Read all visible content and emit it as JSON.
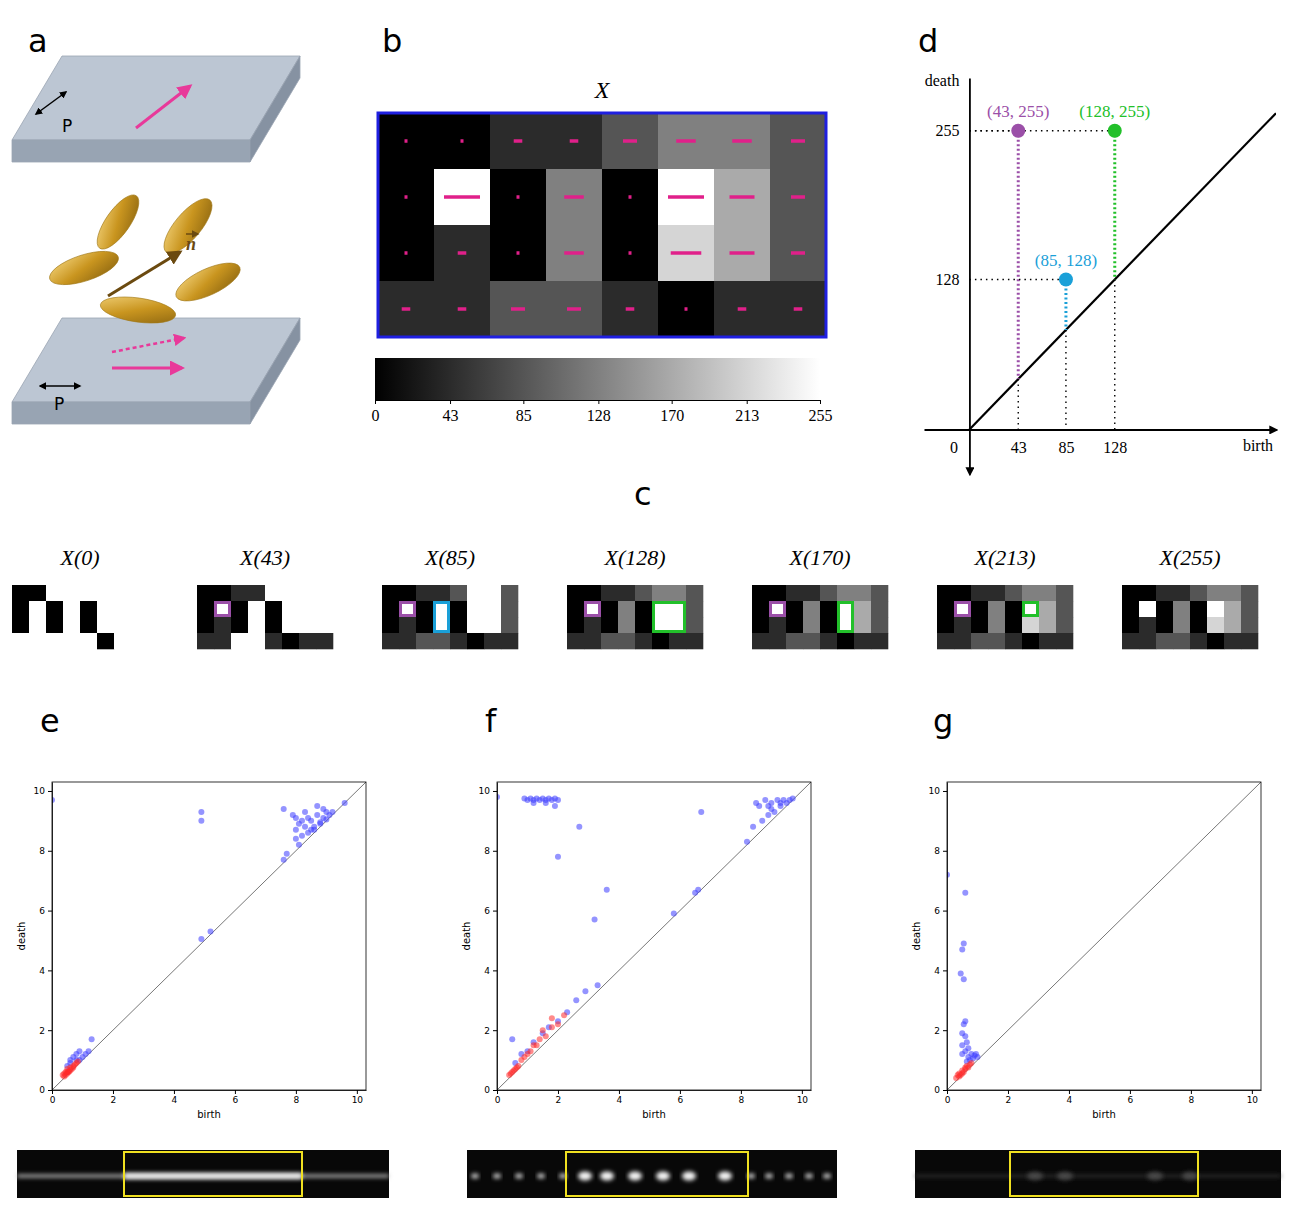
{
  "panel_labels": [
    "a",
    "b",
    "c",
    "d",
    "e",
    "f",
    "g"
  ],
  "schematic": {
    "top_polarizer": "P",
    "bottom_polarizer": "P",
    "director": "n"
  },
  "image_grid": {
    "title": "X",
    "cells": [
      [
        0,
        0,
        43,
        43,
        85,
        128,
        128,
        85
      ],
      [
        0,
        255,
        0,
        128,
        0,
        255,
        170,
        85
      ],
      [
        0,
        43,
        0,
        128,
        0,
        213,
        170,
        85
      ],
      [
        43,
        43,
        85,
        85,
        43,
        0,
        43,
        43
      ]
    ],
    "colorbar": {
      "range": [
        0,
        255
      ],
      "ticks": [
        0,
        43,
        85,
        128,
        170,
        213,
        255
      ]
    }
  },
  "filtration": {
    "thresholds": [
      0,
      43,
      85,
      128,
      170,
      213,
      255
    ],
    "titles": [
      "X(0)",
      "X(43)",
      "X(85)",
      "X(128)",
      "X(170)",
      "X(213)",
      "X(255)"
    ]
  },
  "chart_data": [
    {
      "type": "scatter",
      "xlabel": "birth",
      "ylabel": "death",
      "xlim": [
        -40,
        270
      ],
      "ylim": [
        -38,
        300
      ],
      "xticks": [
        0,
        43,
        85,
        128
      ],
      "yticks": [
        128,
        255
      ],
      "series": [
        {
          "colors": [
            "#9b4fa8",
            "#1aa0d8",
            "#22c02a"
          ],
          "x": [
            43,
            85,
            128
          ],
          "values": [
            255,
            128,
            255
          ],
          "value_labels": [
            "(43, 255)",
            "(85, 128)",
            "(128, 255)"
          ]
        }
      ]
    },
    {
      "type": "scatter",
      "xlabel": "birth",
      "ylabel": "death",
      "xlim": [
        0,
        10.3
      ],
      "ylim": [
        0,
        10.3
      ],
      "xticks": [
        0,
        2,
        4,
        6,
        8,
        10
      ],
      "yticks": [
        0,
        2,
        4,
        6,
        8,
        10
      ],
      "series": [
        {
          "color": "#3d3dff",
          "x": [
            0,
            4.9,
            4.9,
            4.9,
            5.2,
            7.6,
            7.9,
            8.0,
            8.1,
            8.2,
            8.3,
            8.4,
            8.5,
            8.5,
            8.6,
            8.7,
            8.8,
            8.9,
            9.0,
            9.1,
            8.2,
            8.4,
            8.6,
            8.8,
            9.0,
            8.3,
            8.7,
            9.2,
            8.0,
            7.7,
            7.6,
            8.1,
            9.6,
            8.0,
            8.9,
            0.6,
            0.7,
            0.8,
            0.9,
            1.0,
            1.1,
            1.3,
            0.6,
            0.8,
            1.2,
            0.5,
            0.9
          ],
          "values": [
            9.7,
            9.3,
            9.0,
            5.05,
            5.3,
            9.4,
            9.2,
            9.1,
            8.9,
            9.0,
            8.8,
            9.1,
            8.7,
            9.0,
            8.8,
            9.2,
            8.9,
            9.1,
            9.3,
            9.2,
            8.5,
            8.6,
            8.7,
            8.95,
            9.05,
            9.3,
            9.5,
            9.3,
            8.4,
            7.9,
            7.7,
            8.2,
            9.6,
            8.7,
            9.4,
            0.9,
            1.1,
            1.2,
            1.0,
            1.1,
            1.2,
            1.7,
            1.0,
            1.0,
            1.3,
            0.8,
            1.3
          ]
        },
        {
          "color": "#ff2a2a",
          "x": [
            0.35,
            0.4,
            0.45,
            0.5,
            0.5,
            0.55,
            0.6,
            0.65,
            0.7,
            0.75,
            0.8,
            0.45,
            0.55,
            0.6,
            0.4,
            0.7,
            0.85,
            0.5
          ],
          "values": [
            0.5,
            0.55,
            0.6,
            0.55,
            0.7,
            0.62,
            0.75,
            0.7,
            0.8,
            0.85,
            0.9,
            0.5,
            0.6,
            0.65,
            0.45,
            0.75,
            0.95,
            0.6
          ]
        }
      ]
    },
    {
      "type": "scatter",
      "xlabel": "birth",
      "ylabel": "death",
      "xlim": [
        0,
        10.3
      ],
      "ylim": [
        0,
        10.3
      ],
      "xticks": [
        0,
        2,
        4,
        6,
        8,
        10
      ],
      "yticks": [
        0,
        2,
        4,
        6,
        8,
        10
      ],
      "series": [
        {
          "color": "#3d3dff",
          "x": [
            0,
            0.9,
            1.0,
            1.1,
            1.2,
            1.3,
            1.4,
            1.5,
            1.6,
            1.7,
            1.8,
            1.9,
            2.0,
            1.2,
            1.6,
            1.9,
            2.7,
            2.0,
            3.2,
            3.6,
            6.7,
            5.8,
            6.5,
            6.6,
            8.2,
            8.5,
            8.8,
            9.0,
            9.2,
            9.3,
            9.4,
            9.5,
            9.6,
            9.1,
            8.9,
            8.7,
            8.9,
            9.3,
            9.7,
            8.6,
            9.0,
            8.4,
            0.6,
            0.8,
            1.0,
            1.2,
            1.5,
            2.0,
            2.3,
            2.6,
            2.9,
            3.3,
            1.7,
            0.5
          ],
          "values": [
            9.8,
            9.75,
            9.7,
            9.75,
            9.7,
            9.75,
            9.7,
            9.75,
            9.7,
            9.75,
            9.7,
            9.75,
            9.7,
            9.6,
            9.6,
            9.5,
            8.8,
            7.8,
            5.7,
            6.7,
            9.3,
            5.9,
            6.6,
            6.7,
            8.3,
            9.6,
            9.7,
            9.6,
            9.7,
            9.5,
            9.7,
            9.6,
            9.7,
            9.3,
            9.2,
            9.0,
            9.5,
            9.6,
            9.75,
            9.5,
            9.4,
            8.8,
            0.9,
            1.2,
            1.3,
            1.6,
            1.9,
            2.3,
            2.6,
            3.0,
            3.3,
            3.5,
            2.1,
            1.7
          ]
        },
        {
          "color": "#ff2a2a",
          "x": [
            0.4,
            0.5,
            0.6,
            0.7,
            0.8,
            0.9,
            1.0,
            1.1,
            1.3,
            1.4,
            1.6,
            1.8,
            2.0,
            2.2,
            1.2,
            0.45,
            0.55,
            0.65,
            1.5,
            1.8
          ],
          "values": [
            0.5,
            0.6,
            0.7,
            0.8,
            1.0,
            1.1,
            1.2,
            1.3,
            1.5,
            1.7,
            1.8,
            2.1,
            2.2,
            2.5,
            1.5,
            0.55,
            0.65,
            0.75,
            2.0,
            2.4
          ]
        }
      ]
    },
    {
      "type": "scatter",
      "xlabel": "birth",
      "ylabel": "death",
      "xlim": [
        0,
        10.3
      ],
      "ylim": [
        0,
        10.3
      ],
      "xticks": [
        0,
        2,
        4,
        6,
        8,
        10
      ],
      "yticks": [
        0,
        2,
        4,
        6,
        8,
        10
      ],
      "series": [
        {
          "color": "#3d3dff",
          "x": [
            0,
            0.6,
            0.55,
            0.5,
            0.45,
            0.55,
            0.6,
            0.55,
            0.5,
            0.6,
            0.65,
            0.5,
            0.7,
            0.6,
            0.8,
            0.9,
            1.0,
            0.7,
            0.75,
            0.85,
            0.5,
            0.65,
            0.95
          ],
          "values": [
            7.2,
            6.6,
            4.9,
            4.7,
            3.9,
            3.7,
            2.3,
            2.2,
            1.9,
            1.8,
            1.6,
            1.5,
            1.4,
            1.3,
            1.2,
            1.15,
            1.1,
            1.1,
            1.0,
            1.05,
            1.2,
            0.95,
            1.2
          ]
        },
        {
          "color": "#ff2a2a",
          "x": [
            0.3,
            0.35,
            0.4,
            0.45,
            0.5,
            0.55,
            0.6,
            0.65,
            0.7,
            0.75,
            0.8,
            0.4,
            0.5,
            0.6
          ],
          "values": [
            0.4,
            0.5,
            0.55,
            0.5,
            0.65,
            0.6,
            0.7,
            0.8,
            0.75,
            0.85,
            0.9,
            0.45,
            0.55,
            0.75
          ]
        }
      ]
    }
  ]
}
